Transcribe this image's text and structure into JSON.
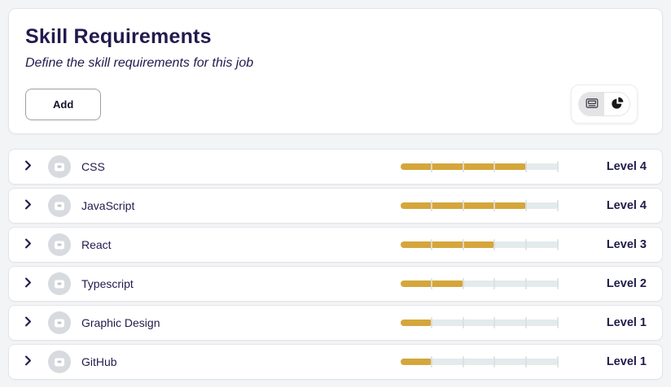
{
  "header": {
    "title": "Skill Requirements",
    "subtitle": "Define the skill requirements for this job",
    "add_button_label": "Add",
    "view_toggle": {
      "options": [
        {
          "name": "list-view",
          "icon": "card-view-icon",
          "selected": true
        },
        {
          "name": "chart-view",
          "icon": "pie-chart-icon",
          "selected": false
        }
      ]
    }
  },
  "icons": {
    "row_expand": "chevron-right-icon",
    "row_avatar": "skill-badge-icon"
  },
  "colors": {
    "accent": "#D5A63C",
    "track": "#E3EBEC",
    "navy": "#221B4E",
    "page-bg": "#F3F4F6"
  },
  "skills": [
    {
      "name": "CSS",
      "level": 4,
      "max_level": 5,
      "level_label": "Level 4"
    },
    {
      "name": "JavaScript",
      "level": 4,
      "max_level": 5,
      "level_label": "Level 4"
    },
    {
      "name": "React",
      "level": 3,
      "max_level": 5,
      "level_label": "Level 3"
    },
    {
      "name": "Typescript",
      "level": 2,
      "max_level": 5,
      "level_label": "Level 2"
    },
    {
      "name": "Graphic Design",
      "level": 1,
      "max_level": 5,
      "level_label": "Level 1"
    },
    {
      "name": "GitHub",
      "level": 1,
      "max_level": 5,
      "level_label": "Level 1"
    }
  ]
}
